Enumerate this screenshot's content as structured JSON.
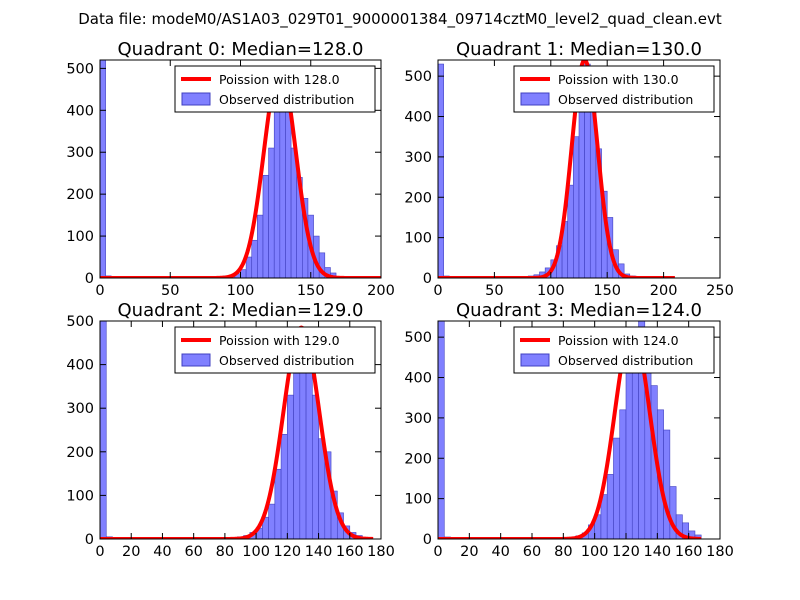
{
  "suptitle": "Data file: modeM0/AS1A03_029T01_9000001384_09714cztM0_level2_quad_clean.evt",
  "colors": {
    "bar_fill": "#8080ff",
    "bar_edge": "#4040c0",
    "curve": "#ff0000",
    "axes": "#000000"
  },
  "chart_data": [
    {
      "type": "bar",
      "title": "Quadrant 0: Median=128.0",
      "xlim": [
        0,
        200
      ],
      "ylim": [
        0,
        520
      ],
      "xticks": [
        0,
        50,
        100,
        150,
        200
      ],
      "yticks": [
        0,
        100,
        200,
        300,
        400,
        500
      ],
      "legend": {
        "curve_label": "Poission with 128.0",
        "hist_label": "Observed distribution",
        "loc": "upper right"
      },
      "bin_width": 4,
      "bins": [
        0,
        4,
        84,
        88,
        92,
        96,
        100,
        104,
        108,
        112,
        116,
        120,
        124,
        128,
        132,
        136,
        140,
        144,
        148,
        152,
        156,
        160,
        164
      ],
      "counts": [
        520,
        5,
        3,
        5,
        6,
        10,
        20,
        50,
        90,
        150,
        245,
        310,
        430,
        470,
        400,
        310,
        240,
        190,
        150,
        100,
        60,
        25,
        12
      ],
      "poisson": {
        "mean": 128.0,
        "peak": 500,
        "sigma": 11.3,
        "x_range": [
          0,
          200
        ]
      }
    },
    {
      "type": "bar",
      "title": "Quadrant 1: Median=130.0",
      "xlim": [
        0,
        250
      ],
      "ylim": [
        0,
        540
      ],
      "xticks": [
        0,
        50,
        100,
        150,
        200,
        250
      ],
      "yticks": [
        0,
        100,
        200,
        300,
        400,
        500
      ],
      "legend": {
        "curve_label": "Poission with 130.0",
        "hist_label": "Observed distribution",
        "loc": "upper right"
      },
      "bin_width": 5,
      "bins": [
        0,
        5,
        80,
        85,
        90,
        95,
        100,
        105,
        110,
        115,
        120,
        125,
        130,
        135,
        140,
        145,
        150,
        155,
        160,
        165,
        170
      ],
      "counts": [
        530,
        5,
        5,
        8,
        15,
        25,
        45,
        80,
        140,
        230,
        350,
        490,
        530,
        420,
        320,
        215,
        150,
        70,
        35,
        10,
        5
      ],
      "poisson": {
        "mean": 130.0,
        "peak": 540,
        "sigma": 11.4,
        "x_range": [
          0,
          210
        ]
      }
    },
    {
      "type": "bar",
      "title": "Quadrant 2: Median=129.0",
      "xlim": [
        0,
        180
      ],
      "ylim": [
        0,
        500
      ],
      "xticks": [
        0,
        20,
        40,
        60,
        80,
        100,
        120,
        140,
        160,
        180
      ],
      "yticks": [
        0,
        100,
        200,
        300,
        400,
        500
      ],
      "legend": {
        "curve_label": "Poission with 129.0",
        "hist_label": "Observed distribution",
        "loc": "upper right"
      },
      "bin_width": 4,
      "bins": [
        0,
        4,
        88,
        92,
        96,
        100,
        104,
        108,
        112,
        116,
        120,
        124,
        128,
        132,
        136,
        140,
        144,
        148,
        152,
        156,
        160,
        164
      ],
      "counts": [
        500,
        5,
        5,
        8,
        15,
        25,
        50,
        80,
        160,
        240,
        330,
        380,
        480,
        430,
        330,
        230,
        200,
        110,
        60,
        30,
        15,
        8
      ],
      "poisson": {
        "mean": 129.0,
        "peak": 485,
        "sigma": 11.4,
        "x_range": [
          0,
          175
        ]
      }
    },
    {
      "type": "bar",
      "title": "Quadrant 3: Median=124.0",
      "xlim": [
        0,
        180
      ],
      "ylim": [
        0,
        540
      ],
      "xticks": [
        0,
        20,
        40,
        60,
        80,
        100,
        120,
        140,
        160,
        180
      ],
      "yticks": [
        0,
        100,
        200,
        300,
        400,
        500
      ],
      "legend": {
        "curve_label": "Poission with 124.0",
        "hist_label": "Observed distribution",
        "loc": "upper right"
      },
      "bin_width": 4,
      "bins": [
        0,
        4,
        88,
        92,
        96,
        100,
        104,
        108,
        112,
        116,
        120,
        124,
        128,
        132,
        136,
        140,
        144,
        148,
        152,
        156,
        160,
        164
      ],
      "counts": [
        540,
        5,
        8,
        15,
        35,
        60,
        110,
        160,
        250,
        320,
        420,
        480,
        540,
        460,
        380,
        320,
        270,
        130,
        60,
        40,
        20,
        10
      ],
      "poisson": {
        "mean": 124.0,
        "peak": 520,
        "sigma": 11.1,
        "x_range": [
          0,
          168
        ]
      }
    }
  ]
}
